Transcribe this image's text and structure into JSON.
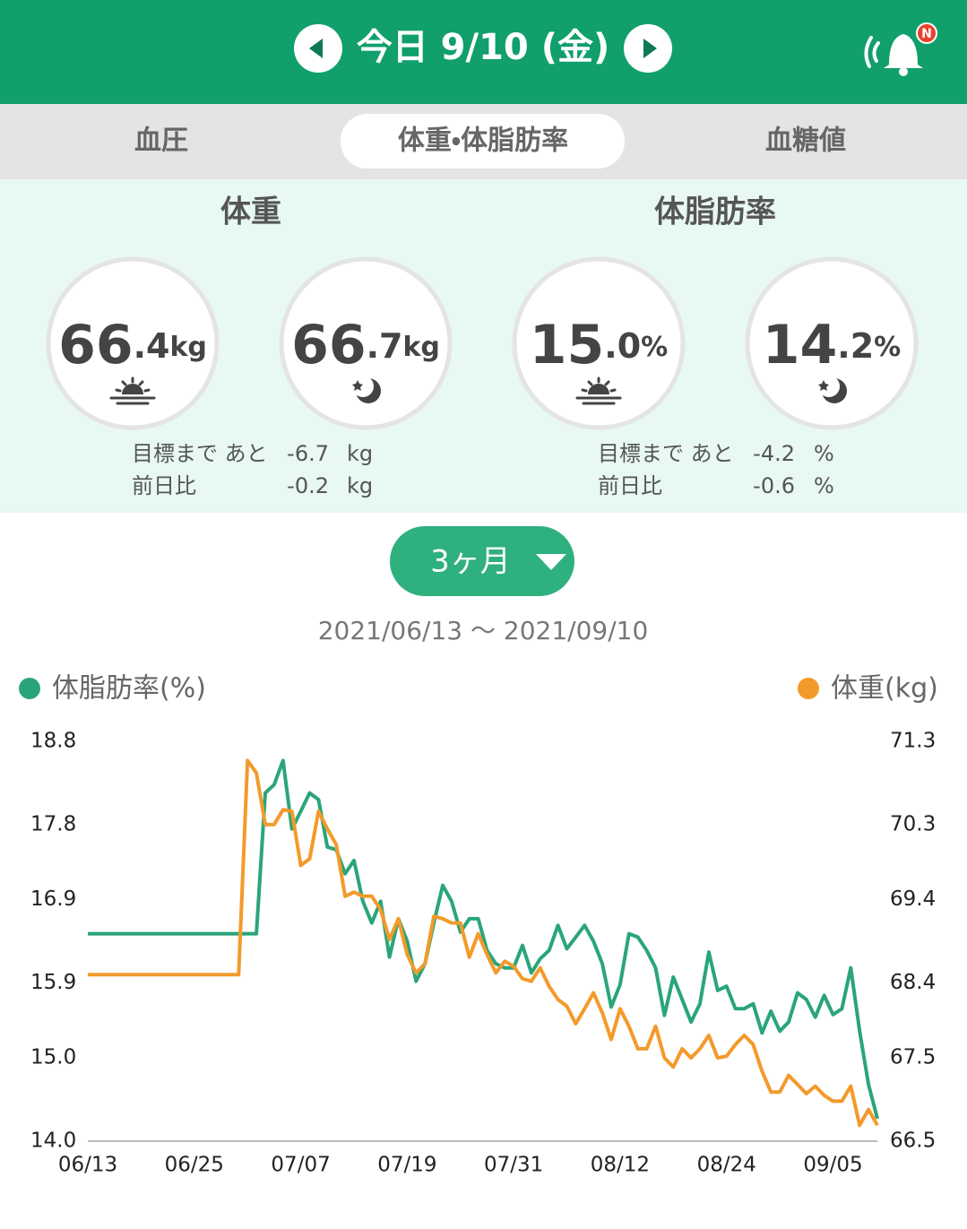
{
  "header": {
    "title": "今日 9/10 (金)",
    "badge": "N"
  },
  "tabs": [
    "血圧",
    "体重・体脂肪率",
    "血糖値"
  ],
  "summary": {
    "weight": {
      "title": "体重",
      "morning": {
        "int": "66",
        "dec": ".4",
        "unit": "kg"
      },
      "evening": {
        "int": "66",
        "dec": ".7",
        "unit": "kg"
      },
      "goal": {
        "label": "目標まで あと",
        "value": "-6.7",
        "unit": "kg"
      },
      "diff": {
        "label": "前日比",
        "value": "-0.2",
        "unit": "kg"
      }
    },
    "fat": {
      "title": "体脂肪率",
      "morning": {
        "int": "15",
        "dec": ".0",
        "unit": "%"
      },
      "evening": {
        "int": "14",
        "dec": ".2",
        "unit": "%"
      },
      "goal": {
        "label": "目標まで あと",
        "value": "-4.2",
        "unit": "%"
      },
      "diff": {
        "label": "前日比",
        "value": "-0.6",
        "unit": "%"
      }
    }
  },
  "period": "3ヶ月",
  "range": "2021/06/13 〜 2021/09/10",
  "chart_data": {
    "type": "line",
    "categories": [
      "06/13",
      null,
      null,
      null,
      null,
      null,
      null,
      null,
      null,
      null,
      null,
      null,
      "06/25",
      null,
      null,
      null,
      null,
      null,
      null,
      null,
      null,
      null,
      null,
      null,
      "07/07",
      null,
      null,
      null,
      null,
      null,
      null,
      null,
      null,
      null,
      null,
      null,
      "07/19",
      null,
      null,
      null,
      null,
      null,
      null,
      null,
      null,
      null,
      null,
      null,
      "07/31",
      null,
      null,
      null,
      null,
      null,
      null,
      null,
      null,
      null,
      null,
      null,
      "08/12",
      null,
      null,
      null,
      null,
      null,
      null,
      null,
      null,
      null,
      null,
      null,
      "08/24",
      null,
      null,
      null,
      null,
      null,
      null,
      null,
      null,
      null,
      null,
      null,
      "09/05",
      null,
      null,
      null,
      null,
      null
    ],
    "series": [
      {
        "name": "体脂肪率(%)",
        "color": "#2aa57a",
        "axis": "y",
        "values": [
          16.49,
          16.49,
          16.49,
          16.49,
          16.49,
          16.49,
          16.49,
          16.49,
          16.49,
          16.49,
          16.49,
          16.49,
          16.49,
          16.49,
          16.49,
          16.49,
          16.49,
          16.49,
          16.49,
          16.49,
          18.18,
          18.28,
          18.57,
          17.75,
          17.96,
          18.18,
          18.1,
          17.53,
          17.5,
          17.21,
          17.37,
          16.88,
          16.62,
          16.88,
          16.21,
          16.67,
          16.4,
          15.92,
          16.13,
          16.62,
          17.07,
          16.88,
          16.51,
          16.67,
          16.67,
          16.29,
          16.13,
          16.08,
          16.08,
          16.35,
          16.02,
          16.19,
          16.29,
          16.59,
          16.31,
          16.45,
          16.59,
          16.4,
          16.13,
          15.61,
          15.88,
          16.49,
          16.45,
          16.29,
          16.08,
          15.51,
          15.97,
          15.7,
          15.43,
          15.65,
          16.27,
          15.81,
          15.86,
          15.59,
          15.59,
          15.65,
          15.3,
          15.56,
          15.32,
          15.43,
          15.78,
          15.7,
          15.49,
          15.75,
          15.52,
          15.59,
          16.08,
          15.32,
          14.68,
          14.27
        ]
      },
      {
        "name": "体重(kg)",
        "color": "#f39a2b",
        "axis": "y2",
        "values": [
          68.5,
          68.5,
          68.5,
          68.5,
          68.5,
          68.5,
          68.5,
          68.5,
          68.5,
          68.5,
          68.5,
          68.5,
          68.5,
          68.5,
          68.5,
          68.5,
          68.5,
          68.5,
          71.07,
          70.92,
          70.3,
          70.3,
          70.48,
          70.46,
          69.81,
          69.89,
          70.46,
          70.25,
          70.06,
          69.44,
          69.49,
          69.44,
          69.44,
          69.28,
          68.92,
          69.17,
          68.74,
          68.52,
          68.63,
          69.2,
          69.17,
          69.12,
          69.12,
          68.71,
          68.99,
          68.74,
          68.52,
          68.66,
          68.6,
          68.45,
          68.42,
          68.58,
          68.36,
          68.2,
          68.12,
          67.91,
          68.09,
          68.28,
          68.04,
          67.72,
          68.09,
          67.88,
          67.61,
          67.61,
          67.88,
          67.5,
          67.39,
          67.61,
          67.5,
          67.61,
          67.77,
          67.5,
          67.52,
          67.66,
          67.77,
          67.66,
          67.34,
          67.09,
          67.09,
          67.29,
          67.18,
          67.07,
          67.16,
          67.05,
          66.98,
          66.98,
          67.16,
          66.69,
          66.88,
          66.69
        ]
      }
    ],
    "ylim": [
      14.0,
      18.8
    ],
    "yticks": [
      {
        "value": 14.0,
        "label": "14.0"
      },
      {
        "value": 15.0,
        "label": "15.0"
      },
      15.9,
      16.9,
      17.8,
      18.8
    ],
    "y2lim": [
      66.5,
      71.3
    ],
    "y2ticks": [
      66.5,
      67.5,
      68.4,
      69.4,
      70.3,
      71.3
    ],
    "grid": false
  }
}
